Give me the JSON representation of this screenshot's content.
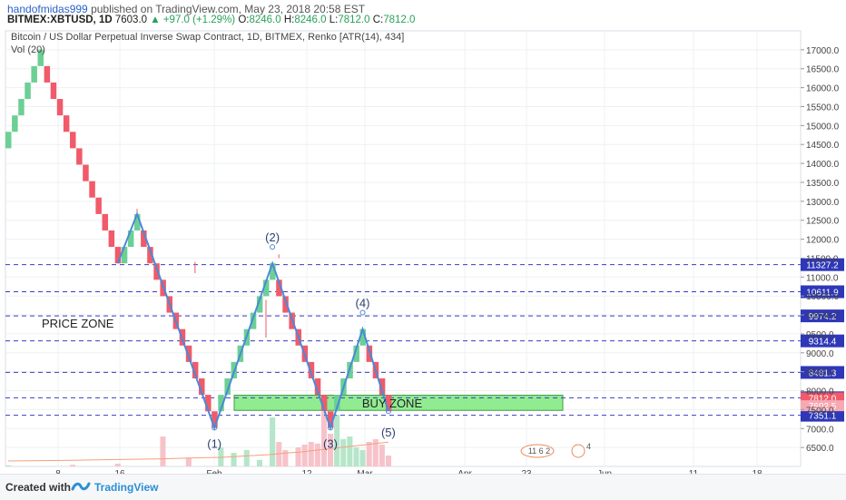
{
  "header": {
    "author": "handofmidas999",
    "published_text": "published on TradingView.com, May 23, 2018 20:58 EST",
    "symbol": "BITMEX:XBTUSD, 1D",
    "last": "7603.0",
    "change": "+97.0 (+1.29%)",
    "ohlc": {
      "o": "8246.0",
      "h": "8246.0",
      "l": "7812.0",
      "c": "7812.0"
    }
  },
  "chart_data": {
    "type": "renko",
    "title": "Bitcoin / US Dollar Perpetual Inverse Swap Contract, 1D, BITMEX, Renko [ATR(14), 434]",
    "indicator": "Vol (20)",
    "ylim": [
      6000,
      17500
    ],
    "y_ticks": [
      6500,
      7000,
      7500,
      8000,
      8500,
      9000,
      9500,
      10000,
      10500,
      11000,
      11500,
      12000,
      12500,
      13000,
      13500,
      14000,
      14500,
      15000,
      15500,
      16000,
      16500,
      17000
    ],
    "x_ticks": [
      "8",
      "16",
      "Feb",
      "12",
      "Mar",
      "Apr",
      "23",
      "Jun",
      "11",
      "18"
    ],
    "grid": true,
    "colors": {
      "up": "#6ccf94",
      "down": "#f05a6a",
      "level": "#3a3ac8",
      "wave": "#4a8ad6",
      "zone": "#7ee87e"
    },
    "bricks": [
      {
        "d": "up",
        "lo": 14400
      },
      {
        "d": "up",
        "lo": 14834
      },
      {
        "d": "up",
        "lo": 15268
      },
      {
        "d": "up",
        "lo": 15702
      },
      {
        "d": "up",
        "lo": 16136
      },
      {
        "d": "up",
        "lo": 16570
      },
      {
        "d": "dn",
        "lo": 16136
      },
      {
        "d": "dn",
        "lo": 15702
      },
      {
        "d": "dn",
        "lo": 15268
      },
      {
        "d": "dn",
        "lo": 14834
      },
      {
        "d": "dn",
        "lo": 14400
      },
      {
        "d": "dn",
        "lo": 13966
      },
      {
        "d": "dn",
        "lo": 13532
      },
      {
        "d": "dn",
        "lo": 13098
      },
      {
        "d": "dn",
        "lo": 12664
      },
      {
        "d": "dn",
        "lo": 12230
      },
      {
        "d": "dn",
        "lo": 11796
      },
      {
        "d": "dn",
        "lo": 11362
      },
      {
        "d": "up",
        "lo": 11362
      },
      {
        "d": "up",
        "lo": 11796
      },
      {
        "d": "up",
        "lo": 12230
      },
      {
        "d": "dn",
        "lo": 11796
      },
      {
        "d": "dn",
        "lo": 11362
      },
      {
        "d": "dn",
        "lo": 10928
      },
      {
        "d": "dn",
        "lo": 10494
      },
      {
        "d": "dn",
        "lo": 10060
      },
      {
        "d": "dn",
        "lo": 9626
      },
      {
        "d": "dn",
        "lo": 9192
      },
      {
        "d": "dn",
        "lo": 8758
      },
      {
        "d": "dn",
        "lo": 8324
      },
      {
        "d": "dn",
        "lo": 7890
      },
      {
        "d": "dn",
        "lo": 7456
      },
      {
        "d": "dn",
        "lo": 7022
      },
      {
        "d": "up",
        "lo": 7456
      },
      {
        "d": "up",
        "lo": 7890
      },
      {
        "d": "up",
        "lo": 8324
      },
      {
        "d": "up",
        "lo": 8758
      },
      {
        "d": "up",
        "lo": 9192
      },
      {
        "d": "up",
        "lo": 9626
      },
      {
        "d": "up",
        "lo": 10060
      },
      {
        "d": "up",
        "lo": 10494
      },
      {
        "d": "up",
        "lo": 10928
      },
      {
        "d": "dn",
        "lo": 10494
      },
      {
        "d": "dn",
        "lo": 10060
      },
      {
        "d": "dn",
        "lo": 9626
      },
      {
        "d": "dn",
        "lo": 9192
      },
      {
        "d": "dn",
        "lo": 8758
      },
      {
        "d": "dn",
        "lo": 8324
      },
      {
        "d": "dn",
        "lo": 7890
      },
      {
        "d": "dn",
        "lo": 7456
      },
      {
        "d": "dn",
        "lo": 7022
      },
      {
        "d": "up",
        "lo": 7456
      },
      {
        "d": "up",
        "lo": 7890
      },
      {
        "d": "up",
        "lo": 8324
      },
      {
        "d": "up",
        "lo": 8758
      },
      {
        "d": "up",
        "lo": 9192
      },
      {
        "d": "dn",
        "lo": 8758
      },
      {
        "d": "dn",
        "lo": 8324
      },
      {
        "d": "dn",
        "lo": 7890
      },
      {
        "d": "dn",
        "lo": 7456
      }
    ],
    "levels": [
      {
        "value": 11327.2,
        "label": "11327.2"
      },
      {
        "value": 10611.9,
        "label": "10611.9"
      },
      {
        "value": 9974.2,
        "label": "9974.2"
      },
      {
        "value": 9314.4,
        "label": "9314.4"
      },
      {
        "value": 8481.3,
        "label": "8481.3"
      },
      {
        "value": 7812.6,
        "label": "7812.6"
      },
      {
        "value": 7351.1,
        "label": "7351.1"
      }
    ],
    "price_badges": [
      {
        "value": 7812.0,
        "label": "7812.0",
        "color": "#f05a6a"
      },
      {
        "value": 7602.5,
        "label": "7602.5",
        "color": "#f7a9b3"
      }
    ],
    "wave_labels": [
      "(1)",
      "(2)",
      "(3)",
      "(4)",
      "(5)"
    ],
    "wave_points": [
      {
        "brick": 17,
        "value": 11362
      },
      {
        "brick": 20,
        "value": 12664
      },
      {
        "brick": 32,
        "value": 7022
      },
      {
        "brick": 41,
        "value": 11362
      },
      {
        "brick": 50,
        "value": 7022
      },
      {
        "brick": 55,
        "value": 9626
      },
      {
        "brick": 59,
        "value": 7456
      }
    ],
    "zones": [
      {
        "label": "BUY ZONE",
        "lo": 7480,
        "hi": 7880
      },
      {
        "label": "PRICE ZONE",
        "at": 9760
      }
    ],
    "volume": [
      {
        "b": 0,
        "v": 0.02
      },
      {
        "b": 10,
        "v": 0.03
      },
      {
        "b": 17,
        "v": 0.05
      },
      {
        "b": 24,
        "v": 0.55
      },
      {
        "b": 28,
        "v": 0.15
      },
      {
        "b": 33,
        "v": 0.35
      },
      {
        "b": 35,
        "v": 0.25
      },
      {
        "b": 37,
        "v": 0.3
      },
      {
        "b": 39,
        "v": 0.12
      },
      {
        "b": 41,
        "v": 0.9
      },
      {
        "b": 42,
        "v": 0.45
      },
      {
        "b": 43,
        "v": 0.3
      },
      {
        "b": 45,
        "v": 0.35
      },
      {
        "b": 46,
        "v": 0.4
      },
      {
        "b": 47,
        "v": 0.45
      },
      {
        "b": 48,
        "v": 0.42
      },
      {
        "b": 49,
        "v": 1.0
      },
      {
        "b": 50,
        "v": 0.6
      },
      {
        "b": 51,
        "v": 0.95
      },
      {
        "b": 52,
        "v": 0.5
      },
      {
        "b": 53,
        "v": 0.55
      },
      {
        "b": 54,
        "v": 0.35
      },
      {
        "b": 55,
        "v": 0.3
      },
      {
        "b": 56,
        "v": 0.45
      },
      {
        "b": 57,
        "v": 0.5
      },
      {
        "b": 58,
        "v": 0.4
      },
      {
        "b": 59,
        "v": 0.2
      }
    ],
    "event_badges": [
      "11",
      "6",
      "2",
      "4"
    ]
  },
  "footer": {
    "created": "Created with",
    "brand": "TradingView"
  }
}
